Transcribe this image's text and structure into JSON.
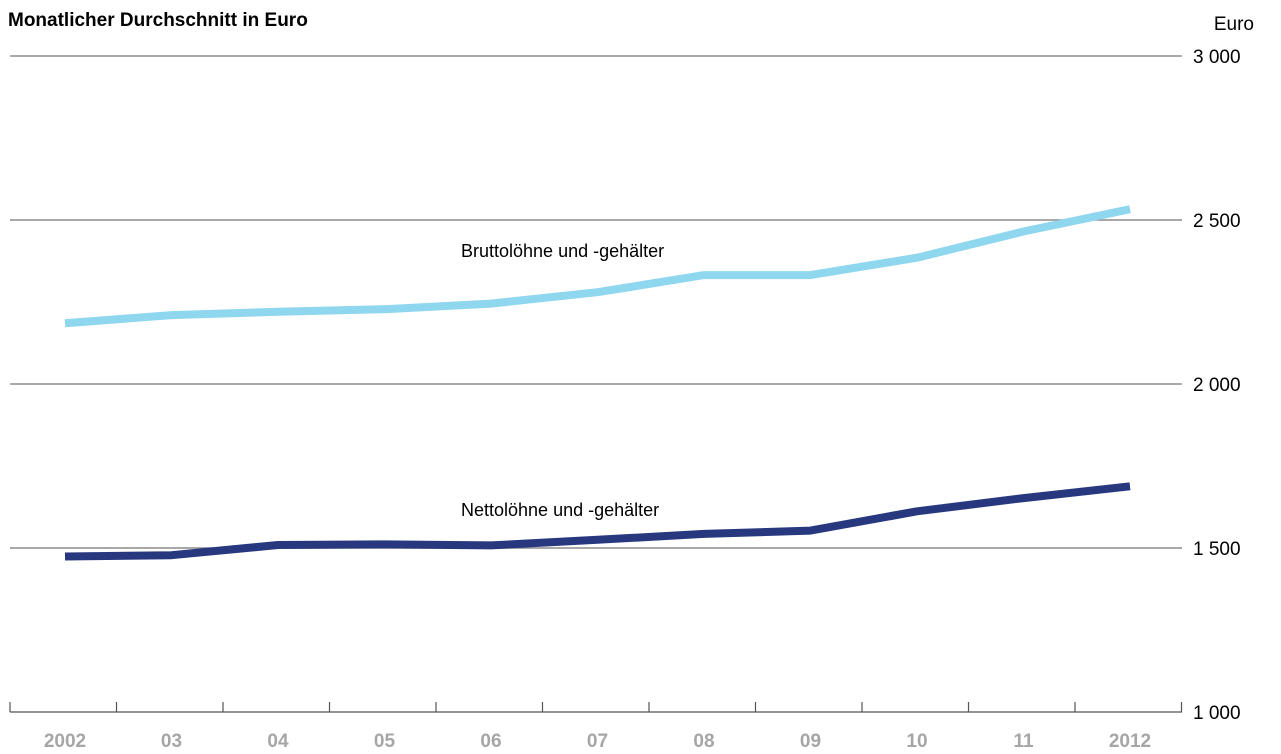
{
  "chart_data": {
    "type": "line",
    "title": "Monatlicher Durchschnitt in Euro",
    "ylabel": "Euro",
    "categories": [
      "2002",
      "03",
      "04",
      "05",
      "06",
      "07",
      "08",
      "09",
      "10",
      "11",
      "2012"
    ],
    "ylim": [
      1000,
      3000
    ],
    "yticks": [
      1000,
      1500,
      2000,
      2500,
      3000
    ],
    "ytick_labels": [
      "1 000",
      "1 500",
      "2 000",
      "2 500",
      "3 000"
    ],
    "grid": true,
    "series": [
      {
        "name": "Bruttolöhne und -gehälter",
        "color": "#8fd6ef",
        "values": [
          2185,
          2210,
          2220,
          2228,
          2245,
          2280,
          2332,
          2332,
          2385,
          2465,
          2533
        ]
      },
      {
        "name": "Nettolöhne und -gehälter",
        "color": "#27387f",
        "values": [
          1474,
          1478,
          1509,
          1511,
          1508,
          1525,
          1543,
          1553,
          1612,
          1652,
          1688
        ]
      }
    ]
  }
}
